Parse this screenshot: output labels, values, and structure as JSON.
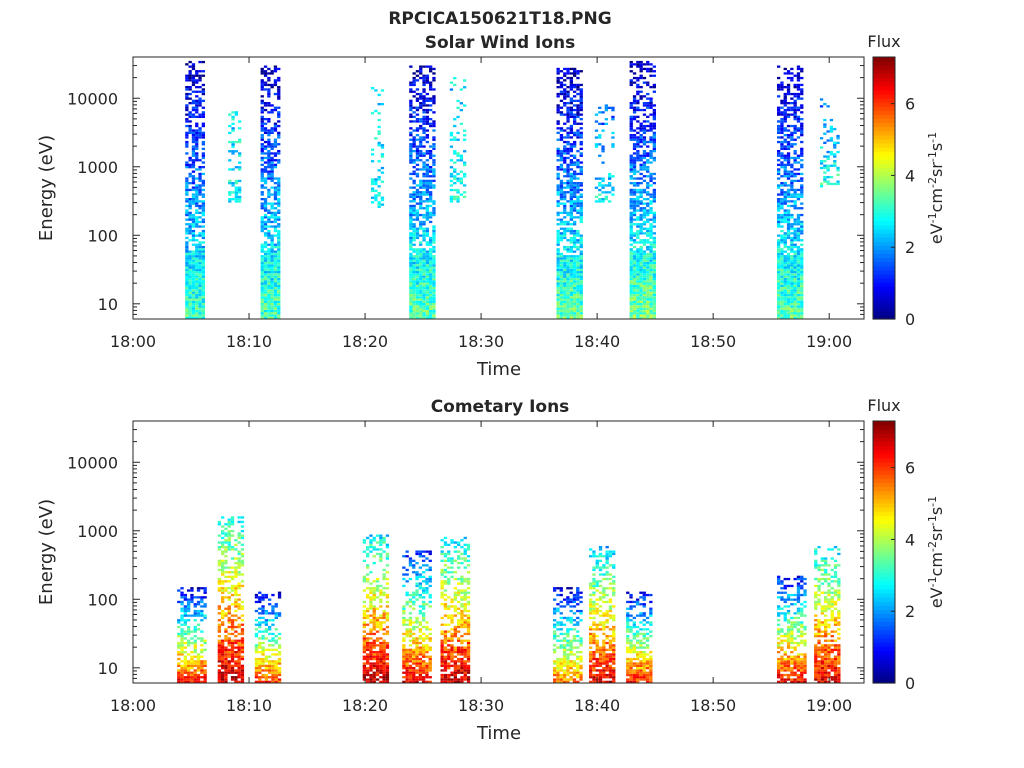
{
  "figure_title": "RPCICA150621T18.PNG",
  "colors": {
    "jet": [
      "#00007f",
      "#0000ff",
      "#007fff",
      "#00ffff",
      "#7fff7f",
      "#ffff00",
      "#ff7f00",
      "#ff0000",
      "#7f0000"
    ]
  },
  "chart_data": [
    {
      "type": "heatmap",
      "title": "Solar Wind Ions",
      "xlabel": "Time",
      "ylabel": "Energy (eV)",
      "xlim": [
        "18:00",
        "19:03"
      ],
      "ylim": [
        6,
        40000
      ],
      "yscale": "log",
      "xticks": [
        "18:00",
        "18:10",
        "18:20",
        "18:30",
        "18:40",
        "18:50",
        "19:00"
      ],
      "yticks": [
        "10",
        "100",
        "1000",
        "10000"
      ],
      "colorbar": {
        "label": "Flux",
        "units": "eV-1cm-2sr-1s-1",
        "range": [
          0,
          7.3
        ],
        "ticks": [
          "0",
          "2",
          "4",
          "6"
        ]
      },
      "bursts": [
        {
          "start": "18:04.5",
          "end": "18:06.2",
          "emin": 6,
          "emax": 35000,
          "low_flux": 3.2,
          "high_flux": 0.4,
          "density": 0.75
        },
        {
          "start": "18:08.2",
          "end": "18:09.3",
          "emin": 300,
          "emax": 8000,
          "low_flux": 2.8,
          "high_flux": 2.5,
          "density": 0.25
        },
        {
          "start": "18:11.0",
          "end": "18:12.7",
          "emin": 6,
          "emax": 30000,
          "low_flux": 3.3,
          "high_flux": 0.4,
          "density": 0.75
        },
        {
          "start": "18:20.5",
          "end": "18:21.6",
          "emin": 250,
          "emax": 15000,
          "low_flux": 2.6,
          "high_flux": 2.4,
          "density": 0.25
        },
        {
          "start": "18:23.8",
          "end": "18:25.8",
          "emin": 6,
          "emax": 30000,
          "low_flux": 3.4,
          "high_flux": 0.4,
          "density": 0.75
        },
        {
          "start": "18:27.3",
          "end": "18:28.6",
          "emin": 300,
          "emax": 20000,
          "low_flux": 2.8,
          "high_flux": 2.5,
          "density": 0.25
        },
        {
          "start": "18:36.5",
          "end": "18:38.6",
          "emin": 6,
          "emax": 28000,
          "low_flux": 3.4,
          "high_flux": 0.4,
          "density": 0.75
        },
        {
          "start": "18:39.8",
          "end": "18:41.3",
          "emin": 300,
          "emax": 9000,
          "low_flux": 2.7,
          "high_flux": 1.5,
          "density": 0.25
        },
        {
          "start": "18:42.8",
          "end": "18:44.8",
          "emin": 6,
          "emax": 35000,
          "low_flux": 3.6,
          "high_flux": 0.4,
          "density": 0.75
        },
        {
          "start": "18:55.5",
          "end": "18:57.6",
          "emin": 6,
          "emax": 30000,
          "low_flux": 3.4,
          "high_flux": 0.4,
          "density": 0.75
        },
        {
          "start": "18:59.2",
          "end": "19:00.8",
          "emin": 500,
          "emax": 10000,
          "low_flux": 3.0,
          "high_flux": 1.6,
          "density": 0.3
        }
      ]
    },
    {
      "type": "heatmap",
      "title": "Cometary Ions",
      "xlabel": "Time",
      "ylabel": "Energy (eV)",
      "xlim": [
        "18:00",
        "19:03"
      ],
      "ylim": [
        6,
        40000
      ],
      "yscale": "log",
      "xticks": [
        "18:00",
        "18:10",
        "18:20",
        "18:30",
        "18:40",
        "18:50",
        "19:00"
      ],
      "yticks": [
        "10",
        "100",
        "1000",
        "10000"
      ],
      "colorbar": {
        "label": "Flux",
        "units": "eV-1cm-2sr-1s-1",
        "range": [
          0,
          7.3
        ],
        "ticks": [
          "0",
          "2",
          "4",
          "6"
        ]
      },
      "bursts": [
        {
          "start": "18:03.8",
          "end": "18:06.2",
          "emin": 6,
          "emax": 150,
          "low_flux": 6.2,
          "high_flux": 0.6,
          "density": 0.6
        },
        {
          "start": "18:07.3",
          "end": "18:09.5",
          "emin": 6,
          "emax": 1600,
          "low_flux": 6.8,
          "high_flux": 2.8,
          "density": 0.6
        },
        {
          "start": "18:10.5",
          "end": "18:12.7",
          "emin": 6,
          "emax": 130,
          "low_flux": 6.0,
          "high_flux": 0.6,
          "density": 0.6
        },
        {
          "start": "18:19.8",
          "end": "18:22.0",
          "emin": 6,
          "emax": 900,
          "low_flux": 6.8,
          "high_flux": 2.6,
          "density": 0.6
        },
        {
          "start": "18:23.2",
          "end": "18:25.5",
          "emin": 6,
          "emax": 500,
          "low_flux": 6.5,
          "high_flux": 1.0,
          "density": 0.6
        },
        {
          "start": "18:26.5",
          "end": "18:29.0",
          "emin": 6,
          "emax": 800,
          "low_flux": 6.8,
          "high_flux": 2.5,
          "density": 0.6
        },
        {
          "start": "18:36.2",
          "end": "18:38.5",
          "emin": 6,
          "emax": 150,
          "low_flux": 5.5,
          "high_flux": 0.7,
          "density": 0.6
        },
        {
          "start": "18:39.3",
          "end": "18:41.5",
          "emin": 6,
          "emax": 600,
          "low_flux": 6.6,
          "high_flux": 2.3,
          "density": 0.6
        },
        {
          "start": "18:42.5",
          "end": "18:44.7",
          "emin": 6,
          "emax": 130,
          "low_flux": 6.2,
          "high_flux": 0.6,
          "density": 0.6
        },
        {
          "start": "18:55.5",
          "end": "18:57.8",
          "emin": 6,
          "emax": 220,
          "low_flux": 6.4,
          "high_flux": 0.9,
          "density": 0.6
        },
        {
          "start": "18:58.7",
          "end": "19:00.8",
          "emin": 6,
          "emax": 600,
          "low_flux": 6.6,
          "high_flux": 2.6,
          "density": 0.6
        }
      ]
    }
  ]
}
